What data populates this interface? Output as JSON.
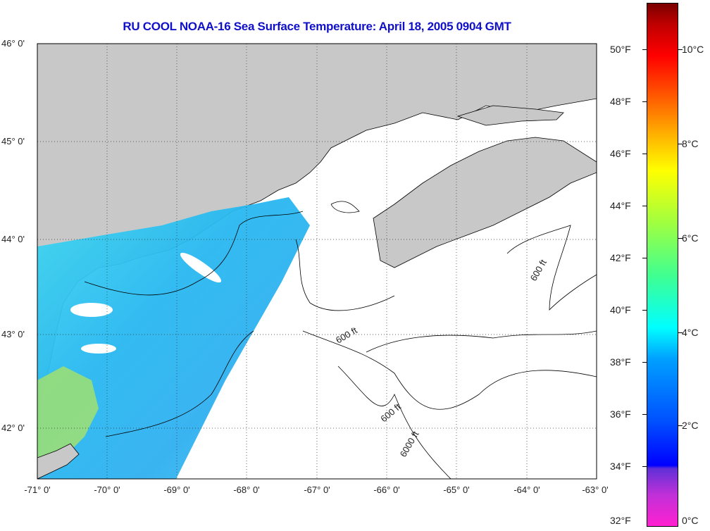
{
  "title": "RU COOL  NOAA-16  Sea Surface Temperature:  April 18, 2005 0904 GMT",
  "map": {
    "lat_labels": [
      "46° 0'",
      "45° 0'",
      "44° 0'",
      "43° 0'",
      "42° 0'"
    ],
    "lon_labels": [
      "-71° 0'",
      "-70° 0'",
      "-69° 0'",
      "-68° 0'",
      "-67° 0'",
      "-66° 0'",
      "-65° 0'",
      "-64° 0'",
      "-63° 0'"
    ],
    "contour_label": "600 ft",
    "contour_label_alt": "6000 ft",
    "colors": {
      "land": "#c8c8c8",
      "ocean_nodata": "#ffffff",
      "swath": "#30c0f0"
    }
  },
  "colorbar": {
    "fahrenheit_labels": [
      "50°F",
      "48°F",
      "46°F",
      "44°F",
      "42°F",
      "40°F",
      "38°F",
      "36°F",
      "34°F",
      "32°F"
    ],
    "celsius_labels": [
      "10°C",
      "8°C",
      "6°C",
      "4°C",
      "2°C",
      "0°C"
    ]
  }
}
